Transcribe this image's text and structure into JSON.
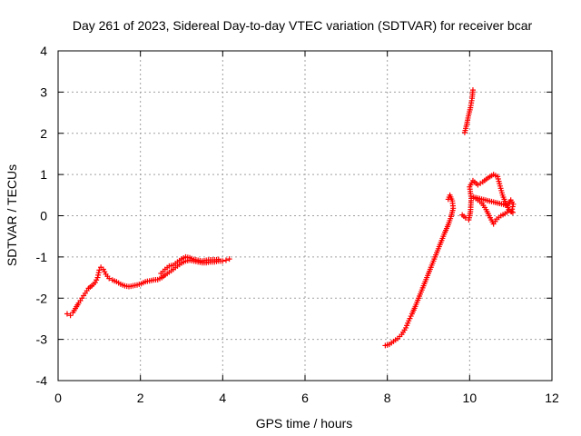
{
  "chart_data": {
    "type": "scatter",
    "title": "Day 261 of 2023, Sidereal Day-to-day VTEC variation (SDTVAR) for receiver bcar",
    "xlabel": "GPS time / hours",
    "ylabel": "SDTVAR / TECUs",
    "xlim": [
      0,
      12
    ],
    "ylim": [
      -4,
      4
    ],
    "xticks": [
      "0",
      "2",
      "4",
      "6",
      "8",
      "10",
      "12"
    ],
    "yticks": [
      "-4",
      "-3",
      "-2",
      "-1",
      "0",
      "1",
      "2",
      "3",
      "4"
    ],
    "grid": true,
    "marker": "+",
    "color": "#ff0000",
    "series": [
      {
        "values": [
          [
            0.22,
            -2.38
          ],
          [
            0.3,
            -2.42
          ],
          [
            0.36,
            -2.35
          ],
          [
            0.42,
            -2.25
          ],
          [
            0.5,
            -2.12
          ],
          [
            0.58,
            -2.0
          ],
          [
            0.66,
            -1.88
          ],
          [
            0.74,
            -1.76
          ],
          [
            0.82,
            -1.7
          ],
          [
            0.9,
            -1.62
          ],
          [
            0.96,
            -1.5
          ],
          [
            1.0,
            -1.32
          ],
          [
            1.04,
            -1.25
          ],
          [
            1.1,
            -1.3
          ],
          [
            1.16,
            -1.42
          ],
          [
            1.24,
            -1.52
          ],
          [
            1.32,
            -1.56
          ],
          [
            1.42,
            -1.6
          ],
          [
            1.52,
            -1.66
          ],
          [
            1.62,
            -1.7
          ],
          [
            1.72,
            -1.72
          ],
          [
            1.82,
            -1.7
          ],
          [
            1.92,
            -1.68
          ],
          [
            2.02,
            -1.65
          ],
          [
            2.12,
            -1.6
          ],
          [
            2.22,
            -1.58
          ],
          [
            2.32,
            -1.56
          ],
          [
            2.42,
            -1.55
          ],
          [
            2.52,
            -1.5
          ],
          [
            2.6,
            -1.44
          ],
          [
            2.7,
            -1.37
          ],
          [
            2.8,
            -1.3
          ],
          [
            2.9,
            -1.22
          ],
          [
            3.0,
            -1.15
          ],
          [
            3.1,
            -1.1
          ],
          [
            3.2,
            -1.08
          ],
          [
            3.3,
            -1.1
          ],
          [
            3.4,
            -1.12
          ],
          [
            3.5,
            -1.14
          ],
          [
            3.6,
            -1.14
          ],
          [
            3.7,
            -1.12
          ],
          [
            3.8,
            -1.12
          ],
          [
            3.9,
            -1.1
          ],
          [
            4.0,
            -1.1
          ],
          [
            4.08,
            -1.08
          ],
          [
            4.16,
            -1.05
          ],
          [
            2.5,
            -1.4
          ],
          [
            2.6,
            -1.3
          ],
          [
            2.7,
            -1.22
          ],
          [
            2.8,
            -1.2
          ],
          [
            2.9,
            -1.12
          ],
          [
            3.0,
            -1.05
          ],
          [
            3.1,
            -1.0
          ],
          [
            3.2,
            -1.02
          ],
          [
            3.3,
            -1.06
          ],
          [
            3.4,
            -1.08
          ],
          [
            3.5,
            -1.1
          ],
          [
            3.6,
            -1.08
          ],
          [
            3.7,
            -1.07
          ],
          [
            3.8,
            -1.07
          ],
          [
            3.9,
            -1.06
          ],
          [
            7.95,
            -3.15
          ],
          [
            8.05,
            -3.12
          ],
          [
            8.15,
            -3.05
          ],
          [
            8.25,
            -2.98
          ],
          [
            8.35,
            -2.88
          ],
          [
            8.45,
            -2.72
          ],
          [
            8.52,
            -2.55
          ],
          [
            8.6,
            -2.38
          ],
          [
            8.68,
            -2.2
          ],
          [
            8.76,
            -2.0
          ],
          [
            8.84,
            -1.8
          ],
          [
            8.92,
            -1.6
          ],
          [
            9.0,
            -1.4
          ],
          [
            9.08,
            -1.2
          ],
          [
            9.16,
            -1.0
          ],
          [
            9.24,
            -0.8
          ],
          [
            9.32,
            -0.6
          ],
          [
            9.4,
            -0.4
          ],
          [
            9.48,
            -0.22
          ],
          [
            9.55,
            -0.02
          ],
          [
            9.6,
            0.18
          ],
          [
            9.58,
            0.36
          ],
          [
            9.52,
            0.5
          ],
          [
            9.48,
            0.4
          ],
          [
            9.88,
            2.02
          ],
          [
            9.93,
            2.22
          ],
          [
            9.97,
            2.42
          ],
          [
            10.02,
            2.62
          ],
          [
            10.06,
            2.85
          ],
          [
            10.08,
            3.05
          ],
          [
            9.82,
            0.02
          ],
          [
            9.9,
            -0.05
          ],
          [
            9.98,
            -0.1
          ],
          [
            10.02,
            0.1
          ],
          [
            10.04,
            0.42
          ],
          [
            10.0,
            0.7
          ],
          [
            10.08,
            0.85
          ],
          [
            10.2,
            0.75
          ],
          [
            10.32,
            0.82
          ],
          [
            10.45,
            0.92
          ],
          [
            10.58,
            1.0
          ],
          [
            10.68,
            0.95
          ],
          [
            10.74,
            0.72
          ],
          [
            10.8,
            0.5
          ],
          [
            10.88,
            0.3
          ],
          [
            10.95,
            0.15
          ],
          [
            11.02,
            0.1
          ],
          [
            11.06,
            0.28
          ],
          [
            11.0,
            0.38
          ],
          [
            10.92,
            0.25
          ],
          [
            10.1,
            0.45
          ],
          [
            10.2,
            0.38
          ],
          [
            10.3,
            0.3
          ],
          [
            10.4,
            0.15
          ],
          [
            10.5,
            -0.05
          ],
          [
            10.58,
            -0.2
          ],
          [
            10.66,
            -0.08
          ],
          [
            10.76,
            0.0
          ],
          [
            10.86,
            0.05
          ],
          [
            10.96,
            0.12
          ],
          [
            11.05,
            0.08
          ]
        ]
      }
    ]
  }
}
